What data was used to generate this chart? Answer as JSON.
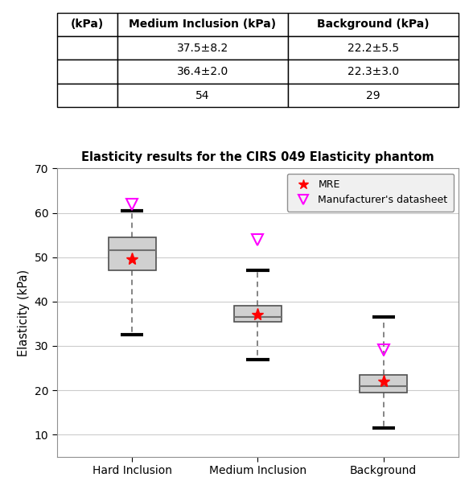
{
  "title": "Elasticity results for the CIRS 049 Elasticity phantom",
  "ylabel": "Elasticity (kPa)",
  "xlabels": [
    "Hard Inclusion",
    "Medium Inclusion",
    "Background"
  ],
  "ylim": [
    5,
    70
  ],
  "yticks": [
    10,
    20,
    30,
    40,
    50,
    60,
    70
  ],
  "boxes": [
    {
      "med": 51.5,
      "q1": 47.0,
      "q3": 54.5,
      "whislo": 32.5,
      "whishi": 60.5
    },
    {
      "med": 36.5,
      "q1": 35.5,
      "q3": 39.0,
      "whislo": 27.0,
      "whishi": 47.0
    },
    {
      "med": 21.0,
      "q1": 19.5,
      "q3": 23.5,
      "whislo": 11.5,
      "whishi": 36.5
    }
  ],
  "mre_values": [
    49.5,
    37.0,
    22.0
  ],
  "manufacturer_values": [
    62.0,
    54.0,
    29.0
  ],
  "box_color": "#d0d0d0",
  "box_edge_color": "#505050",
  "whisker_color": "#707070",
  "median_color": "#707070",
  "mre_color": "#ff0000",
  "manufacturer_color": "#ff00ff",
  "table_headers": [
    "(kPa)",
    "Medium Inclusion (kPa)",
    "Background (kPa)"
  ],
  "table_row1": [
    "",
    "37.5±8.2",
    "22.2±5.5"
  ],
  "table_row2": [
    "",
    "36.4±2.0",
    "22.3±3.0"
  ],
  "table_row3": [
    "",
    "54",
    "29"
  ]
}
